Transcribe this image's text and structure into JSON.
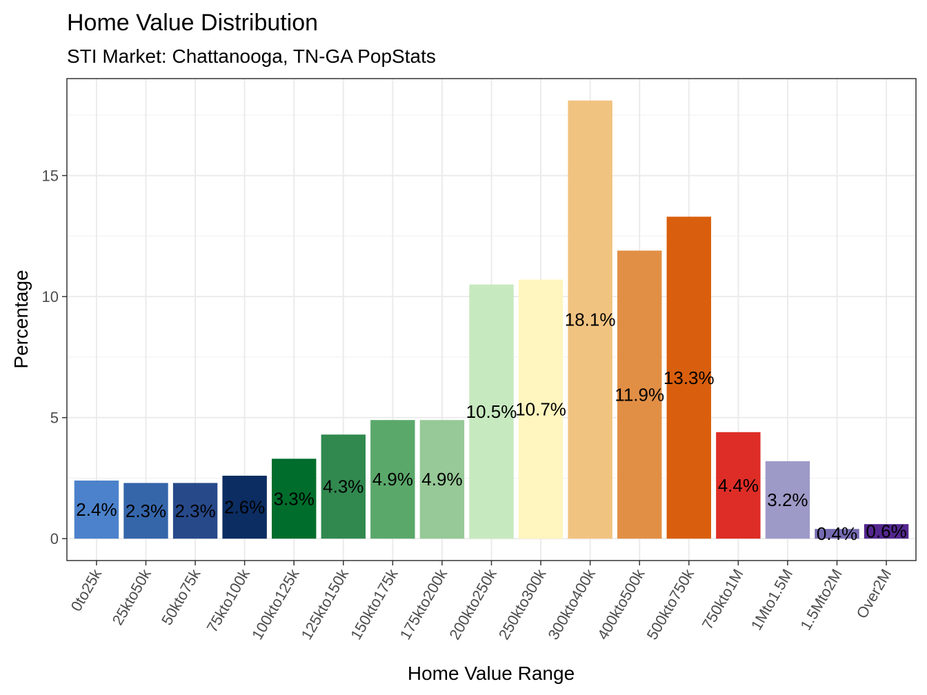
{
  "chart_data": {
    "type": "bar",
    "title": "Home Value Distribution",
    "subtitle": "STI Market: Chattanooga, TN-GA PopStats",
    "xlabel": "Home Value Range",
    "ylabel": "Percentage",
    "ylim": [
      0,
      19
    ],
    "yticks": [
      0,
      5,
      10,
      15
    ],
    "grid": true,
    "legend": "none",
    "categories": [
      "0to25k",
      "25kto50k",
      "50kto75k",
      "75kto100k",
      "100kto125k",
      "125kto150k",
      "150kto175k",
      "175kto200k",
      "200kto250k",
      "250kto300k",
      "300kto400k",
      "400kto500k",
      "500kto750k",
      "750kto1M",
      "1Mto1.5M",
      "1.5Mto2M",
      "Over2M"
    ],
    "values": [
      2.4,
      2.3,
      2.3,
      2.6,
      3.3,
      4.3,
      4.9,
      4.9,
      10.5,
      10.7,
      18.1,
      11.9,
      13.3,
      4.4,
      3.2,
      0.4,
      0.6
    ],
    "data_labels": [
      "2.4%",
      "2.3%",
      "2.3%",
      "2.6%",
      "3.3%",
      "4.3%",
      "4.9%",
      "4.9%",
      "10.5%",
      "10.7%",
      "18.1%",
      "11.9%",
      "13.3%",
      "4.4%",
      "3.2%",
      "0.4%",
      "0.6%"
    ],
    "colors": [
      "#4C82CB",
      "#3566AA",
      "#27498A",
      "#0B2D62",
      "#006D2C",
      "#31894F",
      "#5BA86B",
      "#96C997",
      "#C7E9C0",
      "#FFF5BE",
      "#F1C381",
      "#E28F46",
      "#D95F0E",
      "#DE2D26",
      "#9E9AC8",
      "#756BB1",
      "#54278F"
    ]
  }
}
